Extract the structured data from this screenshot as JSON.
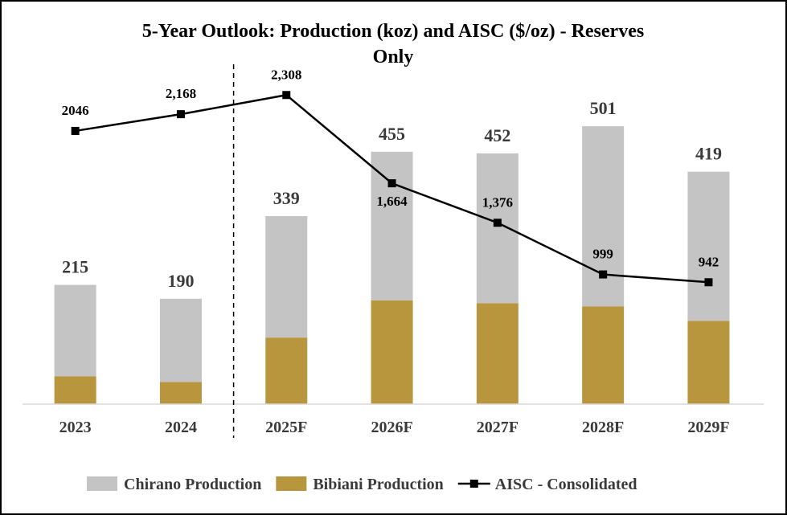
{
  "chart_data": {
    "type": "bar",
    "title_line1": "5-Year Outlook: Production (koz) and AISC ($/oz) - Reserves",
    "title_line2": "Only",
    "categories": [
      "2023",
      "2024",
      "2025F",
      "2026F",
      "2027F",
      "2028F",
      "2029F"
    ],
    "stacked": true,
    "series": [
      {
        "name": "Bibiani Production",
        "kind": "bar",
        "color": "#b8963d",
        "values": [
          50,
          40,
          120,
          187,
          182,
          176,
          150
        ]
      },
      {
        "name": "Chirano Production",
        "kind": "bar",
        "color": "#c4c4c4",
        "values": [
          165,
          150,
          219,
          268,
          270,
          325,
          269
        ]
      },
      {
        "name": "AISC - Consolidated",
        "kind": "line",
        "color": "#000000",
        "values": [
          2046,
          2168,
          2308,
          1664,
          1376,
          999,
          942
        ]
      }
    ],
    "bar_totals": [
      215,
      190,
      339,
      455,
      452,
      501,
      419
    ],
    "bar_total_labels": [
      "215",
      "190",
      "339",
      "455",
      "452",
      "501",
      "419"
    ],
    "line_labels": [
      "2046",
      "2,168",
      "2,308",
      "1,664",
      "1,376",
      "999",
      "942"
    ],
    "legend_order": [
      "Chirano Production",
      "Bibiani Production",
      "AISC - Consolidated"
    ],
    "legend_position": "bottom",
    "forecast_divider_after": "2024",
    "grid": false,
    "ylim_production": [
      0,
      600
    ],
    "ylim_aisc": [
      0,
      2700
    ]
  }
}
